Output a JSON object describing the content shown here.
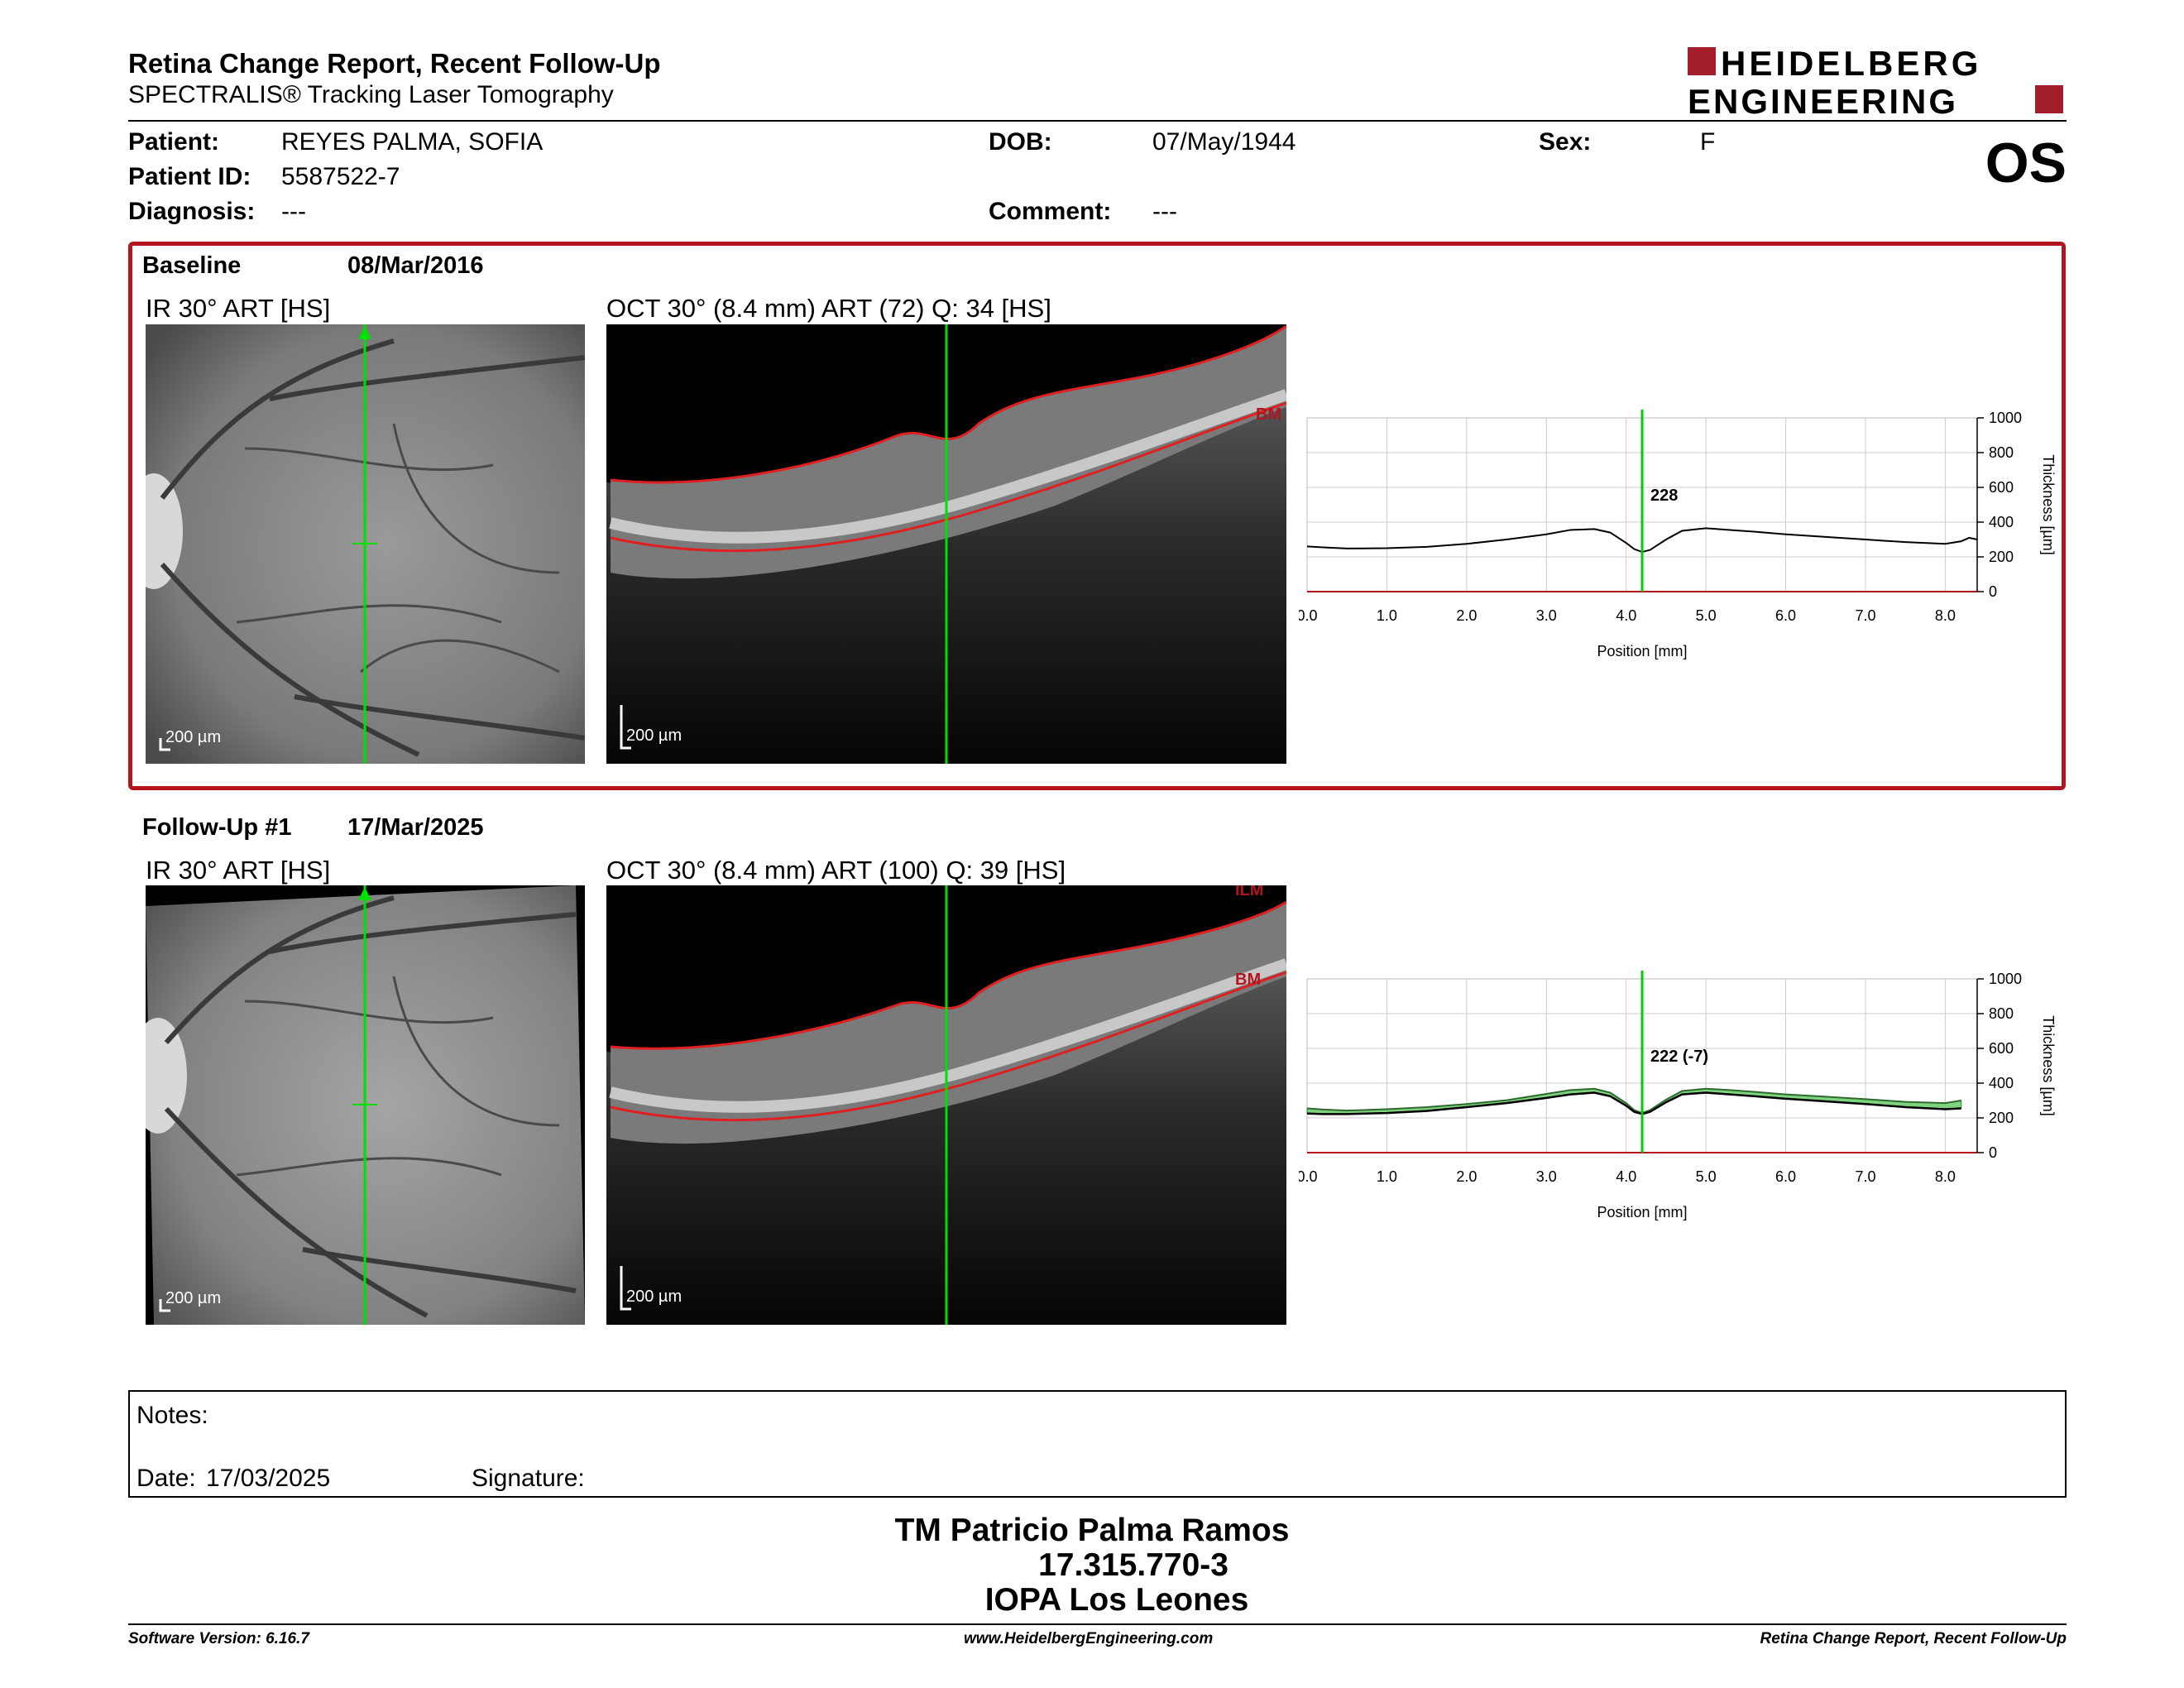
{
  "header": {
    "title": "Retina Change Report, Recent Follow-Up",
    "subtitle": "SPECTRALIS® Tracking Laser Tomography",
    "brand_line1": "HEIDELBERG",
    "brand_line2": "ENGINEERING",
    "brand_color": "#a31d2a"
  },
  "patient": {
    "patient_label": "Patient:",
    "patient_value": "REYES PALMA, SOFIA",
    "id_label": "Patient ID:",
    "id_value": "5587522-7",
    "diagnosis_label": "Diagnosis:",
    "diagnosis_value": "---",
    "dob_label": "DOB:",
    "dob_value": "07/May/1944",
    "comment_label": "Comment:",
    "comment_value": "---",
    "sex_label": "Sex:",
    "sex_value": "F",
    "eye": "OS"
  },
  "baseline": {
    "label": "Baseline",
    "date": "08/Mar/2016",
    "ir_title": "IR 30° ART [HS]",
    "oct_title": "OCT 30° (8.4 mm) ART (72) Q: 34 [HS]",
    "ir_scale": "200 µm",
    "oct_scale": "200 µm",
    "layer_bm": "BM",
    "thickness_label": "228"
  },
  "followup": {
    "label": "Follow-Up #1",
    "date": "17/Mar/2025",
    "ir_title": "IR 30° ART [HS]",
    "oct_title": "OCT 30° (8.4 mm) ART (100) Q: 39 [HS]",
    "ir_scale": "200 µm",
    "oct_scale": "200 µm",
    "layer_ilm": "ILM",
    "layer_bm": "BM",
    "thickness_label": "222 (-7)"
  },
  "chart_data": [
    {
      "type": "line",
      "xlabel": "Position [mm]",
      "ylabel": "Thickness [µm]",
      "xlim": [
        0,
        8.4
      ],
      "ylim": [
        0,
        1000
      ],
      "x_ticks": [
        "0.0",
        "1.0",
        "2.0",
        "3.0",
        "4.0",
        "5.0",
        "6.0",
        "7.0",
        "8.0"
      ],
      "y_ticks": [
        "0",
        "200",
        "400",
        "600",
        "800",
        "1000"
      ],
      "marker_x": 4.2,
      "marker_label": "228",
      "series": [
        {
          "x": [
            0,
            0.2,
            0.5,
            1.0,
            1.5,
            2.0,
            2.5,
            3.0,
            3.3,
            3.6,
            3.8,
            4.0,
            4.1,
            4.2,
            4.3,
            4.5,
            4.7,
            5.0,
            5.3,
            5.6,
            6.0,
            6.5,
            7.0,
            7.5,
            8.0,
            8.2,
            8.3,
            8.4
          ],
          "values": [
            260,
            255,
            248,
            250,
            258,
            275,
            300,
            330,
            355,
            360,
            340,
            280,
            245,
            228,
            240,
            300,
            350,
            365,
            355,
            345,
            330,
            315,
            300,
            285,
            275,
            290,
            310,
            300
          ]
        }
      ],
      "colors": {
        "line": "#000000",
        "marker": "#00cc00",
        "grid": "#cccccc",
        "axis_base": "#b1151e"
      }
    },
    {
      "type": "line",
      "xlabel": "Position [mm]",
      "ylabel": "Thickness [µm]",
      "xlim": [
        0,
        8.4
      ],
      "ylim": [
        0,
        1000
      ],
      "x_ticks": [
        "0.0",
        "1.0",
        "2.0",
        "3.0",
        "4.0",
        "5.0",
        "6.0",
        "7.0",
        "8.0"
      ],
      "y_ticks": [
        "0",
        "200",
        "400",
        "600",
        "800",
        "1000"
      ],
      "marker_x": 4.2,
      "marker_label": "222 (-7)",
      "series": [
        {
          "x": [
            0,
            0.2,
            0.5,
            1.0,
            1.5,
            2.0,
            2.5,
            3.0,
            3.3,
            3.6,
            3.8,
            4.0,
            4.1,
            4.2,
            4.3,
            4.5,
            4.7,
            5.0,
            5.3,
            5.6,
            6.0,
            6.5,
            7.0,
            7.5,
            8.0,
            8.2
          ],
          "values": [
            225,
            222,
            222,
            228,
            240,
            262,
            285,
            315,
            335,
            345,
            325,
            270,
            235,
            222,
            235,
            290,
            335,
            345,
            335,
            325,
            310,
            295,
            280,
            262,
            250,
            255
          ]
        },
        {
          "x": [
            0,
            0.2,
            0.5,
            1.0,
            1.5,
            2.0,
            2.5,
            3.0,
            3.3,
            3.6,
            3.8,
            4.0,
            4.1,
            4.2,
            4.3,
            4.5,
            4.7,
            5.0,
            5.3,
            5.6,
            6.0,
            6.5,
            7.0,
            7.5,
            8.0,
            8.2
          ],
          "values": [
            255,
            248,
            242,
            250,
            262,
            280,
            302,
            338,
            360,
            368,
            345,
            285,
            245,
            228,
            245,
            305,
            355,
            368,
            360,
            350,
            335,
            322,
            308,
            292,
            285,
            300
          ]
        }
      ],
      "colors": {
        "line": "#000000",
        "fill": "#7ed37e",
        "marker": "#00cc00",
        "grid": "#cccccc",
        "axis_base": "#b1151e"
      }
    }
  ],
  "notes": {
    "notes_label": "Notes:",
    "date_label": "Date:",
    "date_value": "17/03/2025",
    "signature_label": "Signature:"
  },
  "footer": {
    "name": "TM Patricio Palma Ramos",
    "id": "17.315.770-3",
    "institution": "IOPA Los Leones",
    "software": "Software Version: 6.16.7",
    "website": "www.HeidelbergEngineering.com",
    "report_name": "Retina Change Report, Recent Follow-Up"
  }
}
